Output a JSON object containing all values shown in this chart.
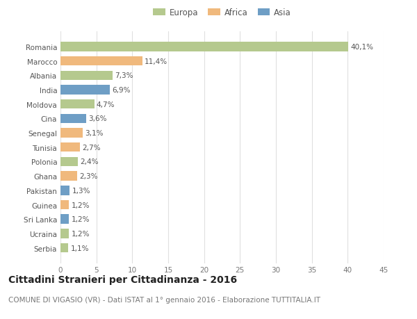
{
  "countries": [
    "Romania",
    "Marocco",
    "Albania",
    "India",
    "Moldova",
    "Cina",
    "Senegal",
    "Tunisia",
    "Polonia",
    "Ghana",
    "Pakistan",
    "Guinea",
    "Sri Lanka",
    "Ucraina",
    "Serbia"
  ],
  "values": [
    40.1,
    11.4,
    7.3,
    6.9,
    4.7,
    3.6,
    3.1,
    2.7,
    2.4,
    2.3,
    1.3,
    1.2,
    1.2,
    1.2,
    1.1
  ],
  "labels": [
    "40,1%",
    "11,4%",
    "7,3%",
    "6,9%",
    "4,7%",
    "3,6%",
    "3,1%",
    "2,7%",
    "2,4%",
    "2,3%",
    "1,3%",
    "1,2%",
    "1,2%",
    "1,2%",
    "1,1%"
  ],
  "colors": [
    "#b5c98e",
    "#f0b97d",
    "#b5c98e",
    "#6e9ec5",
    "#b5c98e",
    "#6e9ec5",
    "#f0b97d",
    "#f0b97d",
    "#b5c98e",
    "#f0b97d",
    "#6e9ec5",
    "#f0b97d",
    "#6e9ec5",
    "#b5c98e",
    "#b5c98e"
  ],
  "legend_labels": [
    "Europa",
    "Africa",
    "Asia"
  ],
  "legend_colors": [
    "#b5c98e",
    "#f0b97d",
    "#6e9ec5"
  ],
  "title": "Cittadini Stranieri per Cittadinanza - 2016",
  "subtitle": "COMUNE DI VIGASIO (VR) - Dati ISTAT al 1° gennaio 2016 - Elaborazione TUTTITALIA.IT",
  "xlim": [
    0,
    45
  ],
  "xticks": [
    0,
    5,
    10,
    15,
    20,
    25,
    30,
    35,
    40,
    45
  ],
  "background_color": "#ffffff",
  "grid_color": "#e0e0e0",
  "bar_height": 0.65,
  "label_fontsize": 7.5,
  "title_fontsize": 10,
  "subtitle_fontsize": 7.5,
  "tick_fontsize": 7.5,
  "legend_fontsize": 8.5
}
